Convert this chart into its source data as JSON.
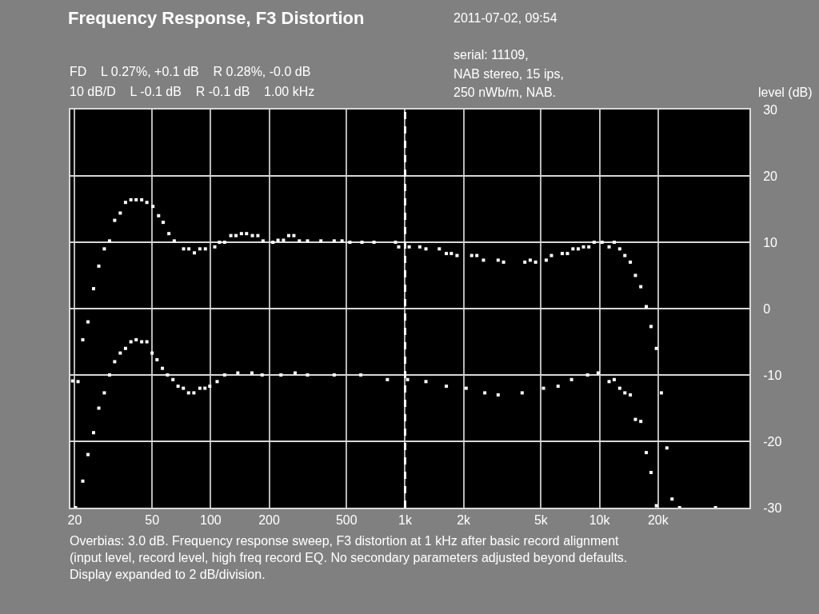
{
  "chart_data": {
    "type": "scatter",
    "title": "Frequency Response, F3 Distortion",
    "ylabel": "level (dB)",
    "annotations": [
      "2011-07-02, 09:54",
      "FD    L 0.27%, +0.1 dB    R 0.28%, -0.0 dB",
      "10 dB/D    L -0.1 dB    R -0.1 dB    1.00 kHz",
      "serial: 11109,",
      "NAB stereo, 15 ips,",
      "250 nWb/m, NAB.",
      "Overbias: 3.0 dB. Frequency response sweep, F3 distortion at 1 kHz after basic record alignment (input level, record level, high freq record EQ. No secondary parameters adjusted beyond defaults. Display expanded to 2 dB/division."
    ],
    "log": "x",
    "grid": true,
    "marker": "square",
    "xlim": [
      19,
      59000
    ],
    "xticks": [
      20,
      50,
      100,
      200,
      500,
      {
        "value": 1000,
        "label": "1k"
      },
      {
        "value": 2000,
        "label": "2k"
      },
      {
        "value": 5000,
        "label": "5k"
      },
      {
        "value": 10000,
        "label": "10k"
      },
      {
        "value": 20000,
        "label": "20k"
      }
    ],
    "ylim": [
      -30,
      30
    ],
    "yticks": [
      -30,
      -20,
      -10,
      0,
      10,
      20,
      30
    ],
    "ref_lines": [
      {
        "axis": "x",
        "value": 1000,
        "color": "#ffffff",
        "line_style": "dashed"
      }
    ],
    "series": [
      {
        "color": "#ffffff",
        "x": [
          19.5,
          20.8,
          22,
          23.4,
          25,
          26.6,
          28.4,
          30.2,
          32.1,
          34.3,
          36.5,
          38.9,
          41.4,
          44.2,
          47,
          50.5,
          54,
          57,
          61,
          65,
          72.6,
          77.3,
          82.5,
          88,
          94,
          105,
          111,
          118,
          127,
          135,
          144,
          153,
          164,
          175,
          186,
          209,
          222,
          237,
          252,
          268,
          286,
          315,
          369,
          432,
          474,
          520,
          600,
          692,
          893,
          927,
          1050,
          1190,
          1280,
          1500,
          1630,
          1730,
          1850,
          2200,
          2340,
          2530,
          3010,
          3210,
          4130,
          4400,
          4690,
          5320,
          5660,
          6430,
          6840,
          7300,
          7770,
          8270,
          8810,
          9380,
          10300,
          11200,
          11900,
          12700,
          13500,
          14400,
          15300,
          16300,
          17400,
          18400,
          19600,
          20800,
          22200,
          23600
        ],
        "values": [
          -10.9,
          -11,
          -4.7,
          -2,
          3,
          6.4,
          9,
          10.2,
          13.3,
          14.4,
          16,
          16.4,
          16.4,
          16.4,
          16,
          15.4,
          14,
          13,
          11.3,
          10.2,
          9,
          9,
          8.4,
          9,
          9,
          9.3,
          10,
          10,
          11,
          11,
          11.3,
          11.3,
          11,
          11,
          10.2,
          10,
          10.3,
          10.3,
          11,
          11,
          10.2,
          10.2,
          10.2,
          10.2,
          10.2,
          10,
          10,
          10,
          10,
          9.3,
          9.3,
          9.3,
          9,
          9,
          8.3,
          8.3,
          8,
          8,
          8,
          7.3,
          7.3,
          7,
          7,
          7.3,
          7,
          7.3,
          8,
          8.3,
          8.3,
          9,
          9,
          9.3,
          9.3,
          10,
          10,
          9.3,
          10,
          9,
          8,
          7,
          5,
          3.3,
          0.3,
          -2.7,
          -6,
          -12.7,
          -21,
          -28.7
        ]
      },
      {
        "color": "#ffffff",
        "x": [
          20.2,
          22,
          23.4,
          25,
          26.6,
          28.4,
          30.2,
          32.1,
          34.3,
          36.5,
          38.9,
          41.4,
          44.2,
          47,
          50,
          53,
          56.5,
          60,
          64,
          68,
          72.4,
          77,
          82,
          88,
          93.5,
          99,
          108,
          118,
          138,
          163,
          184,
          230,
          272,
          315,
          432,
          592,
          811,
          1030,
          1280,
          1630,
          2060,
          2570,
          3010,
          4000,
          5150,
          6120,
          7180,
          8680,
          9840,
          11200,
          11900,
          12700,
          13500,
          14400,
          15300,
          16300,
          17400,
          18400,
          19600,
          25800,
          39500
        ],
        "values": [
          -30,
          -26,
          -22,
          -18.7,
          -15,
          -12.7,
          -10,
          -8,
          -6.7,
          -6,
          -5,
          -4.7,
          -5,
          -5,
          -6.7,
          -7.7,
          -9,
          -10,
          -10.7,
          -11.7,
          -12,
          -12.7,
          -12.7,
          -12,
          -12,
          -11.7,
          -11,
          -10,
          -9.7,
          -9.7,
          -10,
          -10,
          -9.7,
          -10,
          -10,
          -10,
          -10.7,
          -10.7,
          -11,
          -11.7,
          -12,
          -12.7,
          -13,
          -12.7,
          -12,
          -11.7,
          -10.7,
          -10,
          -9.7,
          -11,
          -10.7,
          -12,
          -12.7,
          -13,
          -16.7,
          -17,
          -21.7,
          -24.7,
          -29.7,
          -30,
          -30
        ]
      }
    ]
  }
}
